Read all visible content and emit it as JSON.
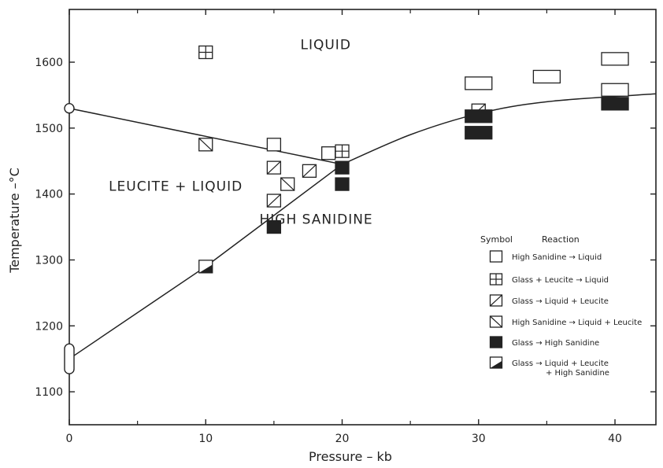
{
  "chart_data": {
    "type": "scatter",
    "title": "",
    "xlabel": "Pressure – kb",
    "ylabel": "Temperature –°C",
    "xlim": [
      0,
      43
    ],
    "ylim": [
      1050,
      1680
    ],
    "x_ticks": [
      0,
      10,
      20,
      30,
      40
    ],
    "y_ticks": [
      1100,
      1200,
      1300,
      1400,
      1500,
      1600
    ],
    "grid": false,
    "regions": [
      {
        "label": "LIQUID",
        "x": 18.8,
        "y": 1620
      },
      {
        "label": "LEUCITE + LIQUID",
        "x": 7.8,
        "y": 1405
      },
      {
        "label": "HIGH SANIDINE",
        "x": 18.1,
        "y": 1355
      }
    ],
    "curves": [
      {
        "name": "leucite-liquidus",
        "points": [
          [
            0,
            1530
          ],
          [
            20,
            1445
          ]
        ]
      },
      {
        "name": "sanidine-leucite-boundary",
        "points": [
          [
            0,
            1150
          ],
          [
            10,
            1290
          ],
          [
            20,
            1445
          ]
        ]
      },
      {
        "name": "sanidine-melting",
        "points": [
          [
            20,
            1445
          ],
          [
            25,
            1490
          ],
          [
            30,
            1522
          ],
          [
            35,
            1540
          ],
          [
            43,
            1552
          ]
        ]
      }
    ],
    "endpoint_markers": [
      {
        "shape": "circle",
        "x": 0,
        "y": 1530
      },
      {
        "shape": "oval",
        "x": 0,
        "y": 1150
      }
    ],
    "legend": {
      "position": "right",
      "header_symbol": "Symbol",
      "header_reaction": "Reaction",
      "entries": [
        {
          "symbol": "open",
          "lines": [
            "High Sanidine → Liquid"
          ]
        },
        {
          "symbol": "cross",
          "lines": [
            "Glass + Leucite → Liquid"
          ]
        },
        {
          "symbol": "slash",
          "lines": [
            "Glass → Liquid + Leucite"
          ]
        },
        {
          "symbol": "backslash",
          "lines": [
            "High Sanidine → Liquid + Leucite"
          ]
        },
        {
          "symbol": "filled",
          "lines": [
            "Glass → High Sanidine"
          ]
        },
        {
          "symbol": "half",
          "lines": [
            "Glass → Liquid + Leucite",
            "+ High Sanidine"
          ]
        }
      ]
    },
    "points": [
      {
        "x": 10,
        "y": 1615,
        "symbol": "cross"
      },
      {
        "x": 10,
        "y": 1475,
        "symbol": "backslash"
      },
      {
        "x": 10,
        "y": 1290,
        "symbol": "half"
      },
      {
        "x": 15,
        "y": 1475,
        "symbol": "open"
      },
      {
        "x": 15,
        "y": 1440,
        "symbol": "slash"
      },
      {
        "x": 15,
        "y": 1390,
        "symbol": "slash"
      },
      {
        "x": 15,
        "y": 1350,
        "symbol": "filled"
      },
      {
        "x": 16,
        "y": 1415,
        "symbol": "backslash"
      },
      {
        "x": 17.6,
        "y": 1435,
        "symbol": "slash"
      },
      {
        "x": 19,
        "y": 1462,
        "symbol": "open"
      },
      {
        "x": 20,
        "y": 1465,
        "symbol": "cross"
      },
      {
        "x": 20,
        "y": 1440,
        "symbol": "filled"
      },
      {
        "x": 20,
        "y": 1415,
        "symbol": "filled"
      },
      {
        "x": 30,
        "y": 1568,
        "symbol": "open",
        "wide": true
      },
      {
        "x": 30,
        "y": 1527,
        "symbol": "slash"
      },
      {
        "x": 30,
        "y": 1518,
        "symbol": "filled",
        "wide": true
      },
      {
        "x": 30,
        "y": 1493,
        "symbol": "filled",
        "wide": true
      },
      {
        "x": 35,
        "y": 1578,
        "symbol": "open",
        "wide": true
      },
      {
        "x": 40,
        "y": 1605,
        "symbol": "open",
        "wide": true
      },
      {
        "x": 40,
        "y": 1558,
        "symbol": "open",
        "wide": true
      },
      {
        "x": 40,
        "y": 1537,
        "symbol": "filled",
        "wide": true
      }
    ]
  }
}
